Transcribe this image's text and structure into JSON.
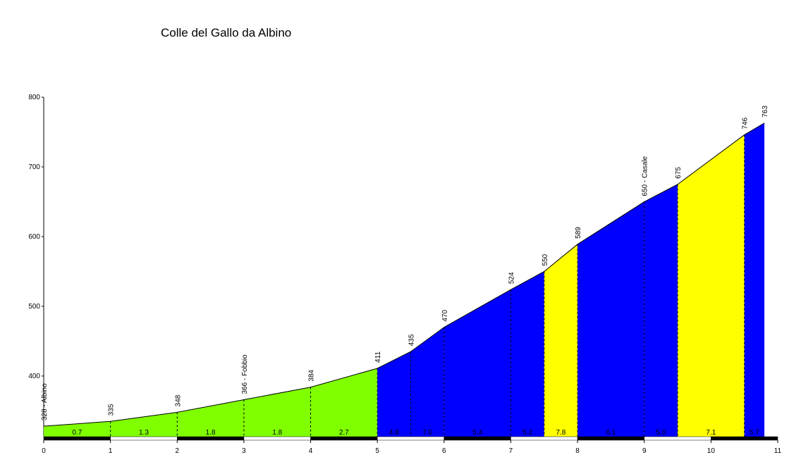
{
  "chart_data": {
    "type": "area",
    "title": "Colle del Gallo da Albino",
    "x": [
      0,
      1,
      2,
      3,
      4,
      5,
      5.5,
      6,
      7,
      7.5,
      8,
      9,
      9.5,
      10.5,
      10.8
    ],
    "values": [
      328,
      335,
      348,
      366,
      384,
      411,
      435,
      470,
      524,
      550,
      589,
      650,
      675,
      746,
      763
    ],
    "value_labels": [
      "328 - Albino",
      "335",
      "348",
      "366 - Fobbio",
      "384",
      "411",
      "435",
      "470",
      "524",
      "550",
      "589",
      "650 - Casale",
      "675",
      "746",
      "763"
    ],
    "segments": {
      "values": [
        0.7,
        1.3,
        1.8,
        1.8,
        2.7,
        4.8,
        7.0,
        5.4,
        5.2,
        7.8,
        6.1,
        5.0,
        7.1,
        5.7
      ],
      "value_labels": [
        "0.7",
        "1.3",
        "1.8",
        "1.8",
        "2.7",
        "4.8",
        "7.0",
        "5.4",
        "5.2",
        "7.8",
        "6.1",
        "5.0",
        "7.1",
        "5.7"
      ],
      "colors": [
        "#80ff00",
        "#80ff00",
        "#80ff00",
        "#80ff00",
        "#80ff00",
        "#0000ff",
        "#0000ff",
        "#0000ff",
        "#0000ff",
        "#ffff00",
        "#0000ff",
        "#0000ff",
        "#ffff00",
        "#0000ff"
      ]
    },
    "xlim": [
      0,
      11
    ],
    "xticks": [
      0,
      1,
      2,
      3,
      4,
      5,
      6,
      7,
      8,
      9,
      10,
      11
    ],
    "ylim": [
      313,
      800
    ],
    "yticks": [
      400,
      500,
      600,
      700,
      800
    ]
  }
}
